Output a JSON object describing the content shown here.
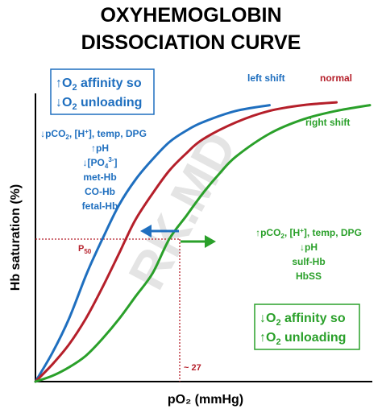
{
  "chart_data": {
    "type": "line",
    "title_line1": "OXYHEMOGLOBIN",
    "title_line2": "DISSOCIATION CURVE",
    "xlabel": "pO₂ (mmHg)",
    "ylabel": "Hb saturation (%)",
    "grid": false,
    "series": [
      {
        "name": "left shift",
        "color": "#1f6fbf",
        "x": [
          0,
          5,
          10,
          15,
          18,
          20,
          25,
          30,
          35,
          40,
          45,
          50,
          60,
          70
        ],
        "y": [
          0,
          10,
          22,
          37,
          45,
          50,
          62,
          71,
          78,
          84,
          88,
          91,
          95,
          97
        ]
      },
      {
        "name": "normal",
        "color": "#b51f2a",
        "x": [
          0,
          5,
          10,
          15,
          20,
          25,
          27,
          30,
          35,
          40,
          45,
          50,
          60,
          70,
          80,
          90
        ],
        "y": [
          0,
          6,
          13,
          22,
          33,
          45,
          50,
          57,
          66,
          74,
          80,
          85,
          91,
          95,
          97,
          98
        ]
      },
      {
        "name": "right shift",
        "color": "#2aa02a",
        "x": [
          0,
          5,
          10,
          15,
          20,
          25,
          30,
          35,
          40,
          45,
          50,
          55,
          60,
          70,
          80,
          90,
          100
        ],
        "y": [
          0,
          2,
          5,
          9,
          15,
          22,
          30,
          38,
          50,
          58,
          66,
          73,
          79,
          87,
          92,
          95,
          97
        ]
      }
    ],
    "annotations": {
      "p50_label": "P",
      "p50_sub": "50",
      "p50_value_label": "~ 27"
    }
  },
  "left_box": {
    "line1_arrow": "↑",
    "line1_pre": "O",
    "line1_sub": "2",
    "line1_post": " affinity so",
    "line2_arrow": "↓",
    "line2_pre": "O",
    "line2_sub": "2",
    "line2_post": " unloading"
  },
  "right_box": {
    "line1_arrow": "↓",
    "line1_pre": "O",
    "line1_sub": "2",
    "line1_post": " affinity so",
    "line2_arrow": "↑",
    "line2_pre": "O",
    "line2_sub": "2",
    "line2_post": " unloading"
  },
  "left_causes": {
    "l1_a": "↓pCO",
    "l1_sub": "2",
    "l1_b": ", [H",
    "l1_sup": "+",
    "l1_c": "], temp, DPG",
    "l2": "↑pH",
    "l3_a": "↓[PO",
    "l3_sub": "4",
    "l3_sup": "3-",
    "l3_b": "]",
    "l4": "met-Hb",
    "l5": "CO-Hb",
    "l6": "fetal-Hb"
  },
  "right_causes": {
    "l1_a": "↑pCO",
    "l1_sub": "2",
    "l1_b": ", [H",
    "l1_sup": "+",
    "l1_c": "], temp, DPG",
    "l2": "↓pH",
    "l3": "sulf-Hb",
    "l4": "HbSS"
  },
  "watermark": "RK.MD",
  "colors": {
    "blue": "#1f6fbf",
    "red": "#b51f2a",
    "green": "#2aa02a",
    "axis": "#000000"
  }
}
